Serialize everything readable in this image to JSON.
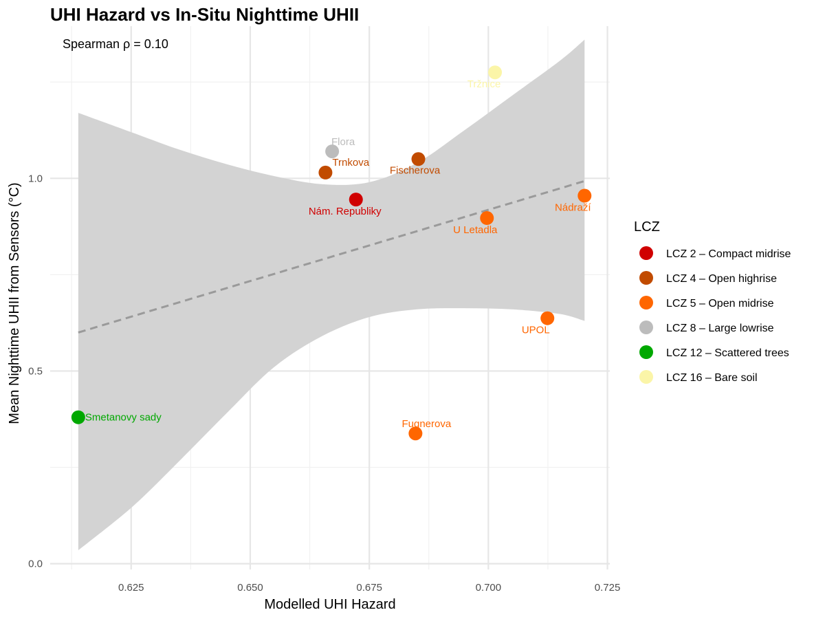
{
  "chart_data": {
    "type": "scatter",
    "title": "UHI Hazard vs In-Situ Nighttime UHII",
    "annotation": "Spearman ρ = 0.10",
    "xlabel": "Modelled UHI Hazard",
    "ylabel": "Mean Nighttime UHII from Sensors (°C)",
    "xlim": [
      0.608,
      0.7255
    ],
    "ylim": [
      -0.015,
      1.395
    ],
    "x_ticks": [
      0.625,
      0.65,
      0.675,
      0.7,
      0.725
    ],
    "x_tick_labels": [
      "0.625",
      "0.650",
      "0.675",
      "0.700",
      "0.725"
    ],
    "y_ticks": [
      0.0,
      0.5,
      1.0
    ],
    "y_tick_labels": [
      "0.0",
      "0.5",
      "1.0"
    ],
    "grid": true,
    "legend": {
      "title": "LCZ",
      "placement": "right",
      "entries": [
        {
          "label": "LCZ 2 – Compact midrise",
          "color": "#d00000"
        },
        {
          "label": "LCZ 4 – Open highrise",
          "color": "#c14b00"
        },
        {
          "label": "LCZ 5 – Open midrise",
          "color": "#ff6600"
        },
        {
          "label": "LCZ 8 – Large lowrise",
          "color": "#bcbcbc"
        },
        {
          "label": "LCZ 12 – Scattered trees",
          "color": "#00a800"
        },
        {
          "label": "LCZ 16 – Bare soil",
          "color": "#fbf5a8"
        }
      ]
    },
    "points": [
      {
        "label": "Smetanovy sady",
        "x": 0.6139,
        "y": 0.38,
        "lcz": 4
      },
      {
        "label": "Trnkova",
        "x": 0.6658,
        "y": 1.015,
        "lcz": 1
      },
      {
        "label": "Flora",
        "x": 0.6672,
        "y": 1.07,
        "lcz": 3
      },
      {
        "label": "Nám. Republiky",
        "x": 0.6722,
        "y": 0.945,
        "lcz": 0
      },
      {
        "label": "Fugnerova",
        "x": 0.6847,
        "y": 0.338,
        "lcz": 2
      },
      {
        "label": "Fischerova",
        "x": 0.6853,
        "y": 1.05,
        "lcz": 1
      },
      {
        "label": "U Letadla",
        "x": 0.6997,
        "y": 0.897,
        "lcz": 2
      },
      {
        "label": "Tržnice",
        "x": 0.7014,
        "y": 1.275,
        "lcz": 5
      },
      {
        "label": "UPOL",
        "x": 0.7124,
        "y": 0.637,
        "lcz": 2
      },
      {
        "label": "Nádraží",
        "x": 0.7202,
        "y": 0.955,
        "lcz": 2
      }
    ],
    "trend_line": {
      "style": "dashed",
      "x": [
        0.6139,
        0.7202
      ],
      "y": [
        0.6,
        0.993
      ]
    },
    "confidence_band": {
      "x": [
        0.6139,
        0.625,
        0.635,
        0.645,
        0.655,
        0.665,
        0.675,
        0.685,
        0.695,
        0.705,
        0.715,
        0.7202
      ],
      "upper": [
        1.17,
        1.12,
        1.075,
        1.037,
        1.006,
        0.985,
        0.99,
        1.04,
        1.125,
        1.215,
        1.305,
        1.36
      ],
      "lower": [
        0.035,
        0.145,
        0.265,
        0.39,
        0.51,
        0.59,
        0.64,
        0.66,
        0.663,
        0.66,
        0.648,
        0.63
      ]
    }
  }
}
